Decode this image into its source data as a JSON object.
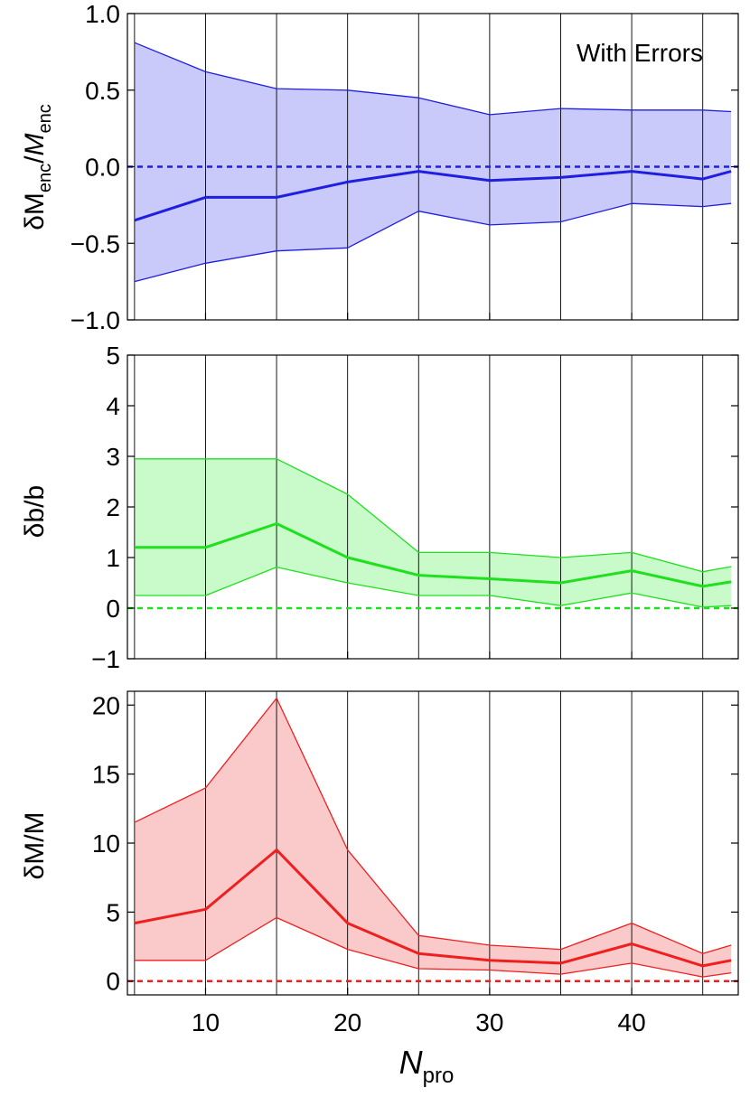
{
  "chart_data": [
    {
      "type": "area",
      "panel": "top",
      "annotation": "With Errors",
      "ylabel_main": "δM",
      "ylabel_sub": "enc",
      "ylabel_slash": "/",
      "ylabel_main2": "M",
      "ylabel_sub2": "enc",
      "xlim": [
        4.5,
        47.5
      ],
      "ylim": [
        -1.0,
        1.0
      ],
      "yticks": [
        -1.0,
        -0.5,
        0.0,
        0.5,
        1.0
      ],
      "ytick_labels": [
        "−1.0",
        "−0.5",
        "0.0",
        "0.5",
        "1.0"
      ],
      "reference_line": 0,
      "color": "#1f1fe0",
      "fill": "#c9c9fa",
      "x": [
        5,
        10,
        15,
        20,
        25,
        30,
        35,
        40,
        45,
        47
      ],
      "series": [
        {
          "values": [
            0.81,
            0.62,
            0.51,
            0.5,
            0.45,
            0.34,
            0.38,
            0.37,
            0.37,
            0.36
          ]
        },
        {
          "values": [
            -0.35,
            -0.2,
            -0.2,
            -0.1,
            -0.03,
            -0.09,
            -0.07,
            -0.03,
            -0.08,
            -0.03
          ]
        },
        {
          "values": [
            -0.75,
            -0.63,
            -0.55,
            -0.53,
            -0.29,
            -0.38,
            -0.36,
            -0.24,
            -0.26,
            -0.24
          ]
        }
      ]
    },
    {
      "type": "area",
      "panel": "middle",
      "ylabel": "δb/b",
      "xlim": [
        4.5,
        47.5
      ],
      "ylim": [
        -1,
        5
      ],
      "yticks": [
        -1,
        0,
        1,
        2,
        3,
        4,
        5
      ],
      "ytick_labels": [
        "−1",
        "0",
        "1",
        "2",
        "3",
        "4",
        "5"
      ],
      "reference_line": 0,
      "color": "#1fe01f",
      "fill": "#c9fac9",
      "x": [
        5,
        10,
        15,
        20,
        25,
        30,
        35,
        40,
        45,
        47
      ],
      "series": [
        {
          "values": [
            2.95,
            2.95,
            2.95,
            2.25,
            1.1,
            1.1,
            1.0,
            1.1,
            0.72,
            0.82
          ]
        },
        {
          "values": [
            1.2,
            1.2,
            1.67,
            1.0,
            0.65,
            0.58,
            0.5,
            0.74,
            0.43,
            0.52
          ]
        },
        {
          "values": [
            0.25,
            0.25,
            0.81,
            0.5,
            0.25,
            0.25,
            0.05,
            0.3,
            0.02,
            0.05
          ]
        }
      ]
    },
    {
      "type": "area",
      "panel": "bottom",
      "ylabel": "δM/M",
      "xlabel_main": "N",
      "xlabel_sub": "pro",
      "xlim": [
        4.5,
        47.5
      ],
      "ylim": [
        -1,
        21
      ],
      "yticks": [
        0,
        5,
        10,
        15,
        20
      ],
      "ytick_labels": [
        "0",
        "5",
        "10",
        "15",
        "20"
      ],
      "xticks": [
        10,
        20,
        30,
        40
      ],
      "xtick_labels": [
        "10",
        "20",
        "30",
        "40"
      ],
      "reference_line": 0,
      "color": "#f01f1f",
      "fill": "#facaca",
      "x": [
        5,
        10,
        15,
        20,
        25,
        30,
        35,
        40,
        45,
        47
      ],
      "series": [
        {
          "values": [
            11.5,
            14.0,
            20.5,
            9.5,
            3.3,
            2.6,
            2.3,
            4.2,
            2.0,
            2.6
          ]
        },
        {
          "values": [
            4.2,
            5.2,
            9.5,
            4.2,
            2.0,
            1.5,
            1.3,
            2.7,
            1.1,
            1.5
          ]
        },
        {
          "values": [
            1.5,
            1.5,
            4.6,
            2.3,
            0.9,
            0.8,
            0.5,
            1.3,
            0.3,
            0.6
          ]
        }
      ]
    }
  ],
  "gridlines_x": [
    5,
    10,
    15,
    20,
    25,
    30,
    35,
    40,
    45
  ]
}
